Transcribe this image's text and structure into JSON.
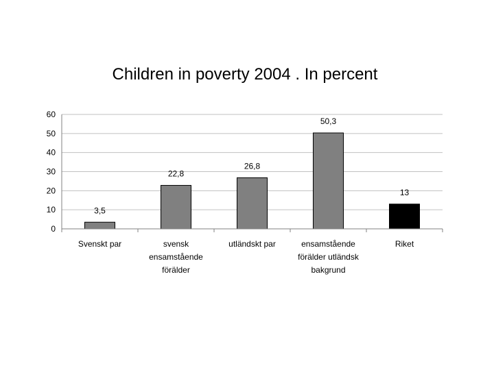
{
  "chart_data": {
    "type": "bar",
    "title": "Children in poverty 2004 . In percent",
    "xlabel": "",
    "ylabel": "",
    "ylim": [
      0,
      60
    ],
    "yticks": [
      0,
      10,
      20,
      30,
      40,
      50,
      60
    ],
    "grid": true,
    "categories": [
      [
        "Svenskt par"
      ],
      [
        "svensk",
        "ensamstående",
        "förälder"
      ],
      [
        "utländskt par"
      ],
      [
        "ensamstående",
        "förälder utländsk",
        "bakgrund"
      ],
      [
        "Riket"
      ]
    ],
    "values": [
      3.5,
      22.8,
      26.8,
      50.3,
      13
    ],
    "data_labels": [
      "3,5",
      "22,8",
      "26,8",
      "50,3",
      "13"
    ],
    "colors": [
      "#808080",
      "#808080",
      "#808080",
      "#808080",
      "#000000"
    ]
  }
}
